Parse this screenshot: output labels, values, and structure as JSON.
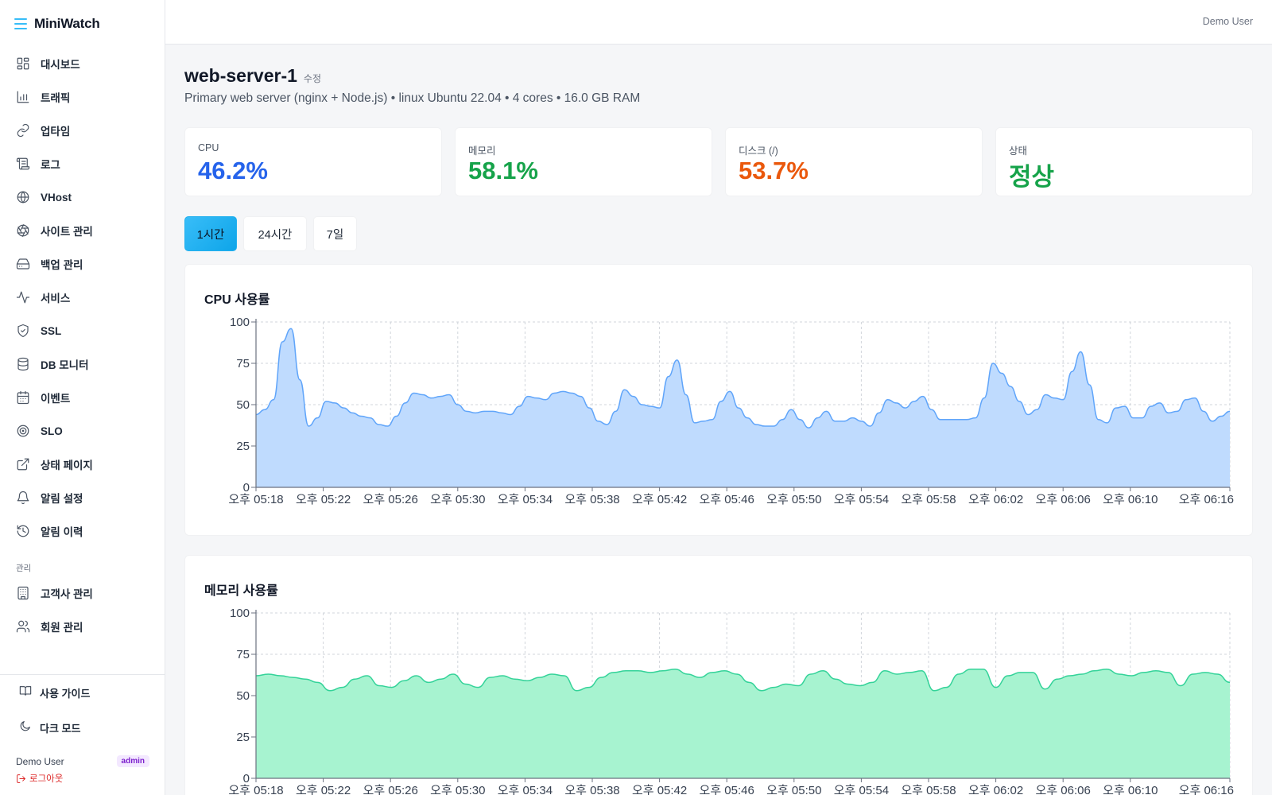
{
  "app": {
    "name": "MiniWatch"
  },
  "header": {
    "user": "Demo User"
  },
  "sidebar": {
    "items": [
      {
        "label": "대시보드",
        "icon": "dashboard-icon"
      },
      {
        "label": "트래픽",
        "icon": "bar-chart-icon"
      },
      {
        "label": "업타임",
        "icon": "link-icon"
      },
      {
        "label": "로그",
        "icon": "scroll-icon"
      },
      {
        "label": "VHost",
        "icon": "globe-icon"
      },
      {
        "label": "사이트 관리",
        "icon": "aperture-icon"
      },
      {
        "label": "백업 관리",
        "icon": "hard-drive-icon"
      },
      {
        "label": "서비스",
        "icon": "activity-icon"
      },
      {
        "label": "SSL",
        "icon": "shield-check-icon"
      },
      {
        "label": "DB 모니터",
        "icon": "database-icon"
      },
      {
        "label": "이벤트",
        "icon": "calendar-icon"
      },
      {
        "label": "SLO",
        "icon": "target-icon"
      },
      {
        "label": "상태 페이지",
        "icon": "external-link-icon"
      },
      {
        "label": "알림 설정",
        "icon": "bell-icon"
      },
      {
        "label": "알림 이력",
        "icon": "history-icon"
      }
    ],
    "section_label": "관리",
    "admin_items": [
      {
        "label": "고객사 관리",
        "icon": "building-icon"
      },
      {
        "label": "회원 관리",
        "icon": "users-icon"
      }
    ],
    "footer": {
      "guide": "사용 가이드",
      "dark_mode": "다크 모드",
      "user": "Demo User",
      "role": "admin",
      "logout": "로그아웃"
    }
  },
  "server": {
    "name": "web-server-1",
    "edit_label": "수정",
    "subtitle": "Primary web server (nginx + Node.js) • linux Ubuntu 22.04 • 4 cores • 16.0 GB RAM"
  },
  "stats": [
    {
      "label": "CPU",
      "value": "46.2%",
      "color": "#2563eb"
    },
    {
      "label": "메모리",
      "value": "58.1%",
      "color": "#16a34a"
    },
    {
      "label": "디스크 (/)",
      "value": "53.7%",
      "color": "#ea580c"
    },
    {
      "label": "상태",
      "value": "정상",
      "color": "#16a34a"
    }
  ],
  "ranges": {
    "options": [
      "1시간",
      "24시간",
      "7일"
    ],
    "selected": "1시간"
  },
  "colors": {
    "cpu_line": "#60a5fa",
    "cpu_fill": "#bfdbfe",
    "mem_line": "#34d399",
    "mem_fill": "#a7f3d0",
    "active_tab": "#0ea5e9"
  },
  "chart_data": [
    {
      "type": "area",
      "title": "CPU 사용률",
      "ylim": [
        0,
        100
      ],
      "yticks": [
        0,
        25,
        50,
        75,
        100
      ],
      "grid": true,
      "xtick_labels": [
        "오후 05:18",
        "오후 05:22",
        "오후 05:26",
        "오후 05:30",
        "오후 05:34",
        "오후 05:38",
        "오후 05:42",
        "오후 05:46",
        "오후 05:50",
        "오후 05:54",
        "오후 05:58",
        "오후 06:02",
        "오후 06:06",
        "오후 06:10",
        "오후 06:16"
      ],
      "series": [
        {
          "values": [
            44,
            47,
            53,
            88,
            96,
            65,
            37,
            42,
            52,
            51,
            48,
            45,
            43,
            42,
            38,
            37,
            43,
            51,
            57,
            56,
            54,
            55,
            56,
            50,
            46,
            45,
            46,
            46,
            45,
            44,
            49,
            55,
            54,
            53,
            57,
            58,
            57,
            55,
            48,
            40,
            38,
            46,
            59,
            55,
            50,
            49,
            48,
            67,
            77,
            56,
            39,
            40,
            41,
            52,
            58,
            48,
            42,
            38,
            37,
            37,
            41,
            47,
            41,
            36,
            42,
            46,
            40,
            40,
            42,
            40,
            37,
            45,
            53,
            51,
            48,
            52,
            55,
            47,
            41,
            41,
            41,
            41,
            42,
            54,
            75,
            69,
            61,
            52,
            44,
            47,
            56,
            54,
            53,
            70,
            82,
            62,
            41,
            39,
            48,
            49,
            42,
            42,
            49,
            51,
            45,
            46,
            53,
            54,
            46,
            40,
            43,
            46
          ],
          "first_label": "오후 05:18",
          "last_label": "오후 06:16"
        }
      ]
    },
    {
      "type": "area",
      "title": "메모리 사용률",
      "ylim": [
        0,
        100
      ],
      "yticks": [
        0,
        25,
        50,
        75,
        100
      ],
      "grid": true,
      "xtick_labels": [
        "오후 05:18",
        "오후 05:22",
        "오후 05:26",
        "오후 05:30",
        "오후 05:34",
        "오후 05:38",
        "오후 05:42",
        "오후 05:46",
        "오후 05:50",
        "오후 05:54",
        "오후 05:58",
        "오후 06:02",
        "오후 06:06",
        "오후 06:10",
        "오후 06:16"
      ],
      "series": [
        {
          "values": [
            62,
            63,
            62,
            61,
            60,
            58,
            53,
            55,
            60,
            62,
            56,
            55,
            59,
            62,
            58,
            60,
            63,
            57,
            55,
            61,
            62,
            60,
            59,
            61,
            63,
            62,
            53,
            55,
            61,
            64,
            65,
            65,
            64,
            65,
            66,
            63,
            61,
            64,
            65,
            63,
            58,
            53,
            55,
            57,
            56,
            63,
            65,
            60,
            57,
            56,
            58,
            65,
            63,
            64,
            65,
            53,
            55,
            63,
            66,
            66,
            55,
            62,
            64,
            64,
            54,
            60,
            62,
            63,
            65,
            66,
            63,
            62,
            64,
            65,
            64,
            56,
            63,
            64,
            63,
            58
          ],
          "first_label": "오후 05:18",
          "last_label": "오후 06:16"
        }
      ]
    }
  ]
}
